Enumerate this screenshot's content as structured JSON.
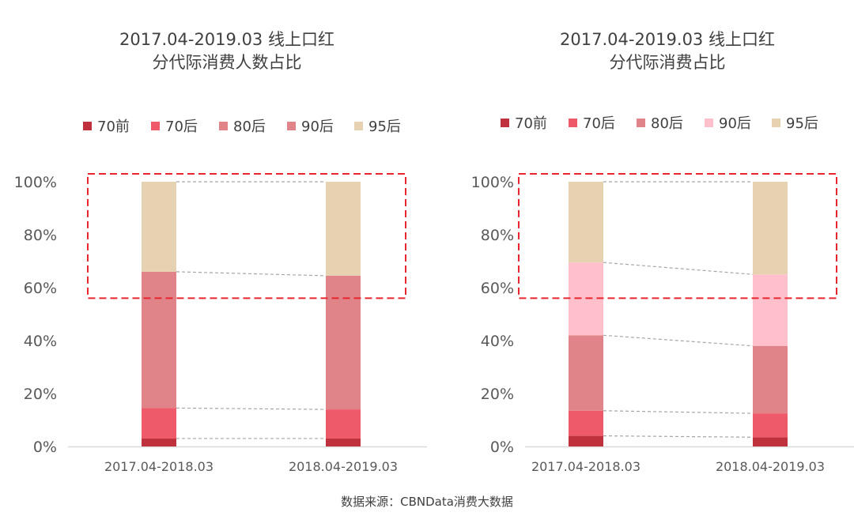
{
  "source_note": "数据来源：CBNData消费大数据",
  "chart_data": [
    {
      "type": "bar",
      "stacked": true,
      "title": [
        "2017.04-2019.03 线上口红",
        "分代际消费人数占比"
      ],
      "categories": [
        "2017.04-2018.03",
        "2018.04-2019.03"
      ],
      "series": [
        {
          "name": "70前",
          "color": "#C0313E",
          "values": [
            3,
            3
          ]
        },
        {
          "name": "70后",
          "color": "#EE5A6A",
          "values": [
            11.5,
            11
          ]
        },
        {
          "name": "80后",
          "color": "#E08489",
          "values": [
            51.5,
            50.5
          ]
        },
        {
          "name": "90后",
          "color": "#E08489",
          "values": [
            0,
            0
          ]
        },
        {
          "name": "95后",
          "color": "#E6D1B1",
          "values": [
            34,
            35.5
          ]
        }
      ],
      "yticks": [
        "0%",
        "20%",
        "40%",
        "60%",
        "80%",
        "100%"
      ],
      "ylim": [
        0,
        100
      ],
      "highlight_range": [
        56,
        103
      ]
    },
    {
      "type": "bar",
      "stacked": true,
      "title": [
        "2017.04-2019.03 线上口红",
        "分代际消费占比"
      ],
      "categories": [
        "2017.04-2018.03",
        "2018.04-2019.03"
      ],
      "series": [
        {
          "name": "70前",
          "color": "#C0313E",
          "values": [
            4,
            3.5
          ]
        },
        {
          "name": "70后",
          "color": "#EE5A6A",
          "values": [
            9.5,
            9
          ]
        },
        {
          "name": "80后",
          "color": "#E08489",
          "values": [
            28.5,
            25.5
          ]
        },
        {
          "name": "90后",
          "color": "#FFC0CB",
          "values": [
            27.5,
            27
          ]
        },
        {
          "name": "95后",
          "color": "#E6D1B1",
          "values": [
            30.5,
            35
          ]
        }
      ],
      "yticks": [
        "0%",
        "20%",
        "40%",
        "60%",
        "80%",
        "100%"
      ],
      "ylim": [
        0,
        100
      ],
      "highlight_range": [
        56,
        103
      ]
    }
  ]
}
